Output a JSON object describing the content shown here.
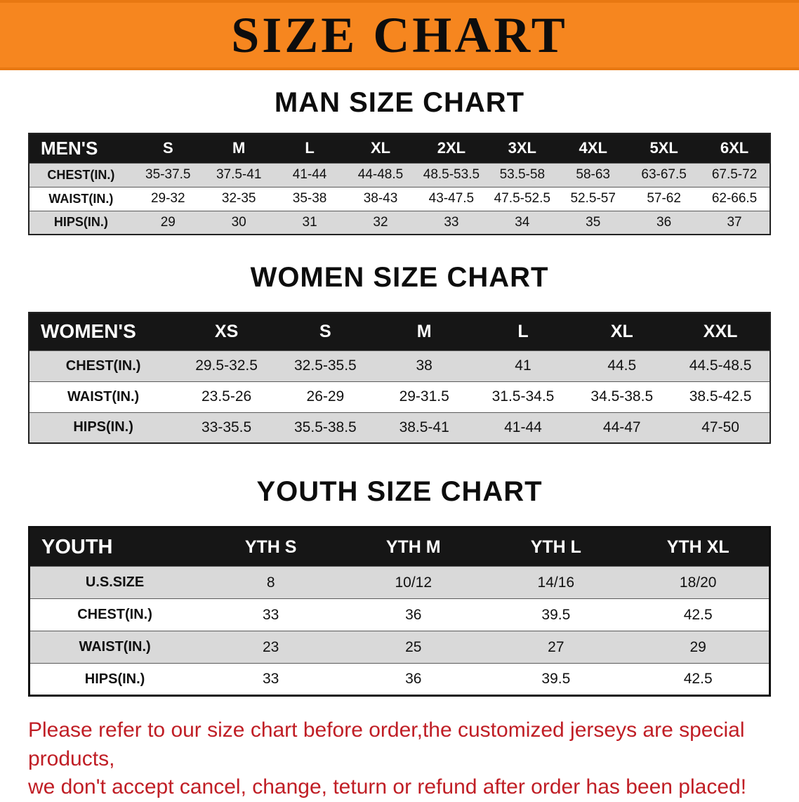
{
  "banner": {
    "title": "SIZE CHART"
  },
  "colors": {
    "banner_bg": "#f6861f",
    "table_header_bg": "#161616",
    "row_alt_gray": "#d9d9d9",
    "disclaimer_red": "#c01e25"
  },
  "sections": {
    "men": {
      "heading": "MAN SIZE CHART",
      "table": {
        "header": [
          "MEN'S",
          "S",
          "M",
          "L",
          "XL",
          "2XL",
          "3XL",
          "4XL",
          "5XL",
          "6XL"
        ],
        "rows": [
          [
            "CHEST(IN.)",
            "35-37.5",
            "37.5-41",
            "41-44",
            "44-48.5",
            "48.5-53.5",
            "53.5-58",
            "58-63",
            "63-67.5",
            "67.5-72"
          ],
          [
            "WAIST(IN.)",
            "29-32",
            "32-35",
            "35-38",
            "38-43",
            "43-47.5",
            "47.5-52.5",
            "52.5-57",
            "57-62",
            "62-66.5"
          ],
          [
            "HIPS(IN.)",
            "29",
            "30",
            "31",
            "32",
            "33",
            "34",
            "35",
            "36",
            "37"
          ]
        ]
      }
    },
    "women": {
      "heading": "WOMEN SIZE CHART",
      "table": {
        "header": [
          "WOMEN'S",
          "XS",
          "S",
          "M",
          "L",
          "XL",
          "XXL"
        ],
        "rows": [
          [
            "CHEST(IN.)",
            "29.5-32.5",
            "32.5-35.5",
            "38",
            "41",
            "44.5",
            "44.5-48.5"
          ],
          [
            "WAIST(IN.)",
            "23.5-26",
            "26-29",
            "29-31.5",
            "31.5-34.5",
            "34.5-38.5",
            "38.5-42.5"
          ],
          [
            "HIPS(IN.)",
            "33-35.5",
            "35.5-38.5",
            "38.5-41",
            "41-44",
            "44-47",
            "47-50"
          ]
        ]
      }
    },
    "youth": {
      "heading": "YOUTH SIZE CHART",
      "table": {
        "header": [
          "YOUTH",
          "YTH S",
          "YTH M",
          "YTH L",
          "YTH XL"
        ],
        "rows": [
          [
            "U.S.SIZE",
            "8",
            "10/12",
            "14/16",
            "18/20"
          ],
          [
            "CHEST(IN.)",
            "33",
            "36",
            "39.5",
            "42.5"
          ],
          [
            "WAIST(IN.)",
            "23",
            "25",
            "27",
            "29"
          ],
          [
            "HIPS(IN.)",
            "33",
            "36",
            "39.5",
            "42.5"
          ]
        ]
      }
    }
  },
  "disclaimer": {
    "line1": "Please refer to our size chart before order,the customized jerseys are special products,",
    "line2": "we don't accept cancel, change, teturn or refund after order has been placed!"
  }
}
